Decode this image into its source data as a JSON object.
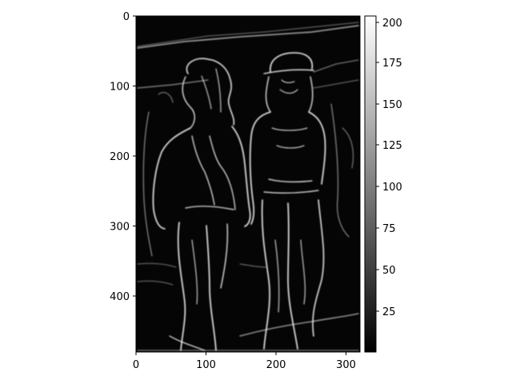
{
  "image": {
    "description_kind": "grayscale edge-magnitude image of two people walking",
    "colormap": "gray"
  },
  "axes": {
    "x_ticks": [
      0,
      100,
      200,
      300
    ],
    "y_ticks": [
      0,
      100,
      200,
      300,
      400
    ],
    "x_range": [
      0,
      320
    ],
    "y_range": [
      0,
      480
    ]
  },
  "colorbar": {
    "ticks": [
      25,
      50,
      75,
      100,
      125,
      150,
      175,
      200
    ],
    "range": [
      0,
      204
    ]
  }
}
